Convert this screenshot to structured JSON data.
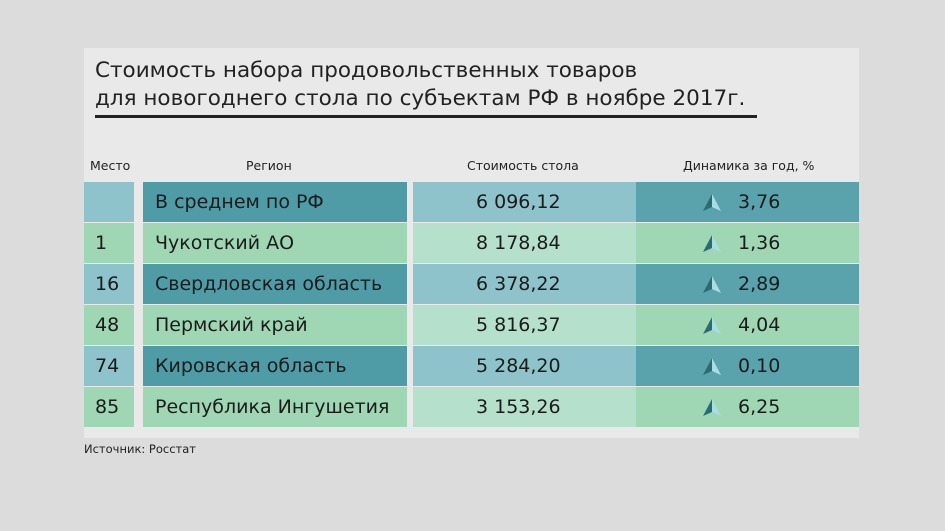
{
  "title_line1": "Стоимость набора продовольственных товаров",
  "title_line2": "для новогоднего стола по субъектам РФ в ноябре 2017г.",
  "headers": {
    "rank": "Место",
    "region": "Регион",
    "cost": "Стоимость стола",
    "change": "Динамика за год, %"
  },
  "source": "Источник: Росстат",
  "colors": {
    "dark_row": "#4f9ca7",
    "light_row": "#9fd7b5",
    "arrow": "#2b6c73"
  },
  "icons": {
    "trend": "up-triangle-icon"
  },
  "chart_data": {
    "type": "table",
    "columns": [
      "Место",
      "Регион",
      "Стоимость стола",
      "Динамика за год, %"
    ],
    "rows": [
      {
        "rank": "",
        "region": "В среднем по РФ",
        "cost": "6 096,12",
        "change": "3,76"
      },
      {
        "rank": "1",
        "region": "Чукотский АО",
        "cost": "8 178,84",
        "change": "1,36"
      },
      {
        "rank": "16",
        "region": "Свердловская область",
        "cost": "6 378,22",
        "change": "2,89"
      },
      {
        "rank": "48",
        "region": "Пермский край",
        "cost": "5 816,37",
        "change": "4,04"
      },
      {
        "rank": "74",
        "region": "Кировская область",
        "cost": "5 284,20",
        "change": "0,10"
      },
      {
        "rank": "85",
        "region": "Республика Ингушетия",
        "cost": "3 153,26",
        "change": "6,25"
      }
    ]
  }
}
